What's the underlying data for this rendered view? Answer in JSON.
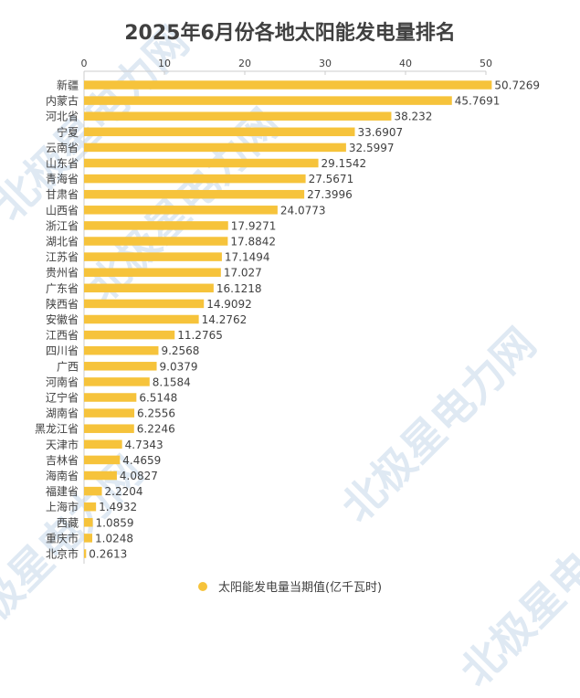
{
  "chart_data": {
    "type": "bar",
    "orientation": "horizontal",
    "title": "2025年6月份各地太阳能发电量排名",
    "categories": [
      "新疆",
      "内蒙古",
      "河北省",
      "宁夏",
      "云南省",
      "山东省",
      "青海省",
      "甘肃省",
      "山西省",
      "浙江省",
      "湖北省",
      "江苏省",
      "贵州省",
      "广东省",
      "陕西省",
      "安徽省",
      "江西省",
      "四川省",
      "广西",
      "河南省",
      "辽宁省",
      "湖南省",
      "黑龙江省",
      "天津市",
      "吉林省",
      "海南省",
      "福建省",
      "上海市",
      "西藏",
      "重庆市",
      "北京市"
    ],
    "series": [
      {
        "name": "太阳能发电量当期值(亿千瓦时)",
        "values": [
          50.7269,
          45.7691,
          38.232,
          33.6907,
          32.5997,
          29.1542,
          27.5671,
          27.3996,
          24.0773,
          17.9271,
          17.8842,
          17.1494,
          17.027,
          16.1218,
          14.9092,
          14.2762,
          11.2765,
          9.2568,
          9.0379,
          8.1584,
          6.5148,
          6.2556,
          6.2246,
          4.7343,
          4.4659,
          4.0827,
          2.2204,
          1.4932,
          1.0859,
          1.0248,
          0.2613
        ]
      }
    ],
    "value_labels": [
      "50.7269",
      "45.7691",
      "38.232",
      "33.6907",
      "32.5997",
      "29.1542",
      "27.5671",
      "27.3996",
      "24.0773",
      "17.9271",
      "17.8842",
      "17.1494",
      "17.027",
      "16.1218",
      "14.9092",
      "14.2762",
      "11.2765",
      "9.2568",
      "9.0379",
      "8.1584",
      "6.5148",
      "6.2556",
      "6.2246",
      "4.7343",
      "4.4659",
      "4.0827",
      "2.2204",
      "1.4932",
      "1.0859",
      "1.0248",
      "0.2613"
    ],
    "x_ticks": [
      "0",
      "10",
      "20",
      "30",
      "40",
      "50"
    ],
    "xlim": [
      0,
      50
    ],
    "axis_position": "top",
    "grid": false,
    "legend": "bottom-center",
    "colors": {
      "bar": "#f6c33b",
      "text": "#404040",
      "axis": "#cccccc"
    }
  },
  "watermark_text": "北极星电力网"
}
